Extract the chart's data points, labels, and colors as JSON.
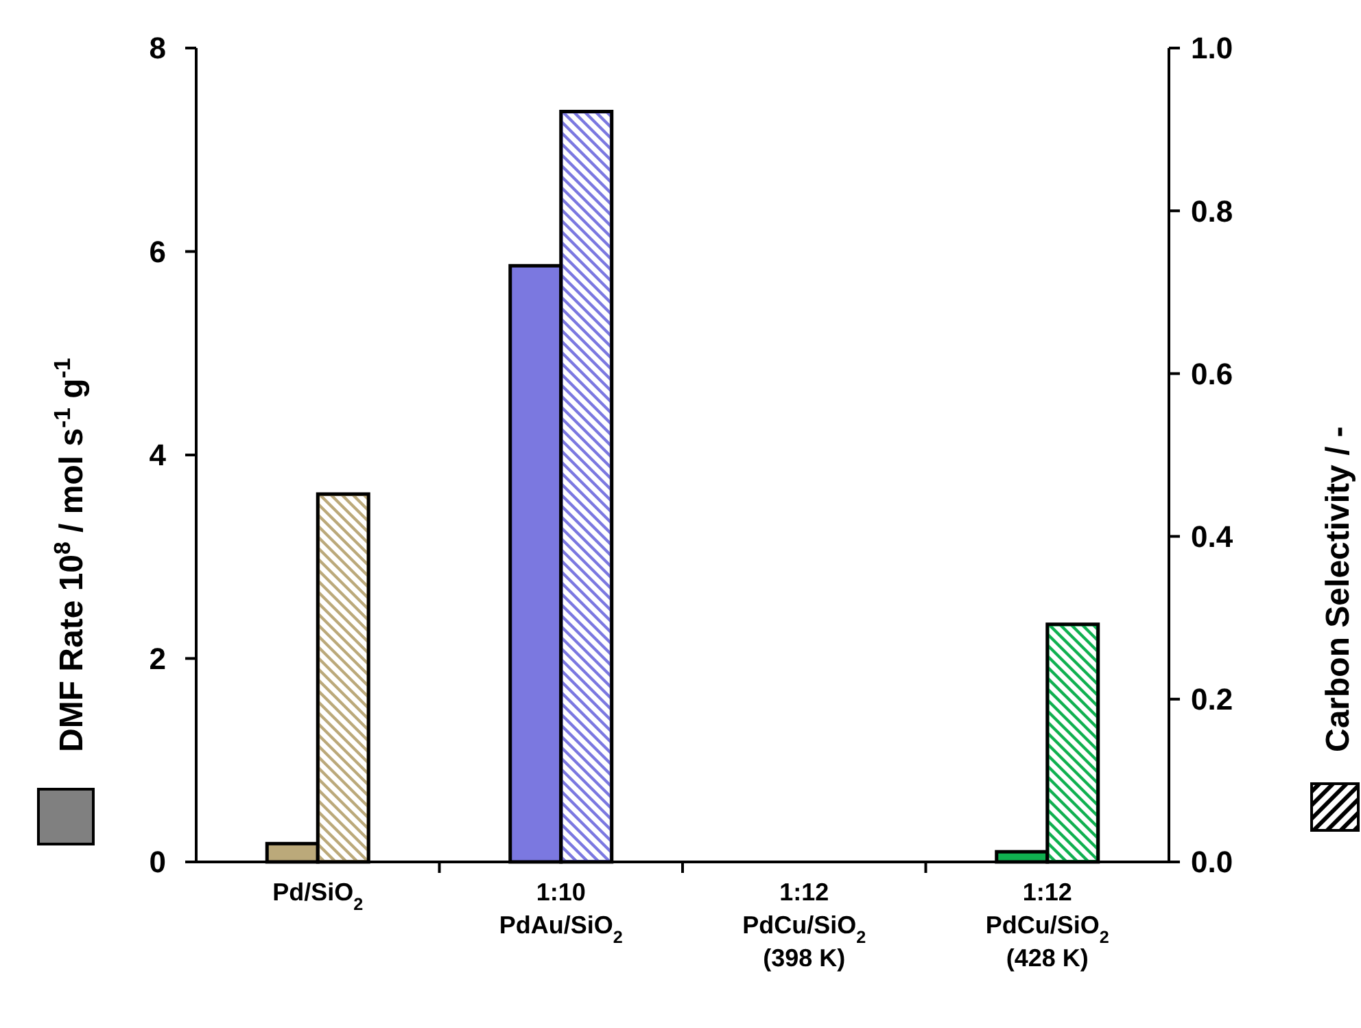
{
  "chart_data": {
    "type": "bar",
    "categories": [
      "Pd/SiO$_{2}$",
      "1:10\nPdAu/SiO$_{2}$",
      "1:12\nPdCu/SiO$_{2}$\n(398 K)",
      "1:12\nPdCu/SiO$_{2}$\n(428 K)"
    ],
    "series": [
      {
        "colors": [
          "#bba97a",
          "#7b78e0",
          "#7b78e0",
          "#10b050"
        ],
        "values": [
          0.18,
          5.86,
          0,
          0.1
        ]
      },
      {
        "axis": "y2",
        "colors": [
          "#bba97a",
          "#7b78e0",
          "#7b78e0",
          "#10b050"
        ],
        "values": [
          0.452,
          0.922,
          0,
          0.292
        ]
      }
    ],
    "ylabel": "DMF Rate 10$^{8}$ / mol s$^{-1}$ g$^{-1}$",
    "y2label": "Carbon Selectivity / -",
    "ylim": [
      0,
      8
    ],
    "yticks": [
      0,
      2,
      4,
      6,
      8
    ],
    "y2lim": [
      0,
      1
    ],
    "y2ticks": [
      {
        "value": 0,
        "label": "0.0"
      },
      {
        "value": 0.2,
        "label": "0.2"
      },
      {
        "value": 0.4,
        "label": "0.4"
      },
      {
        "value": 0.6,
        "label": "0.6"
      },
      {
        "value": 0.8,
        "label": "0.8"
      },
      {
        "value": 1,
        "label": "1.0"
      }
    ],
    "grid": false
  }
}
